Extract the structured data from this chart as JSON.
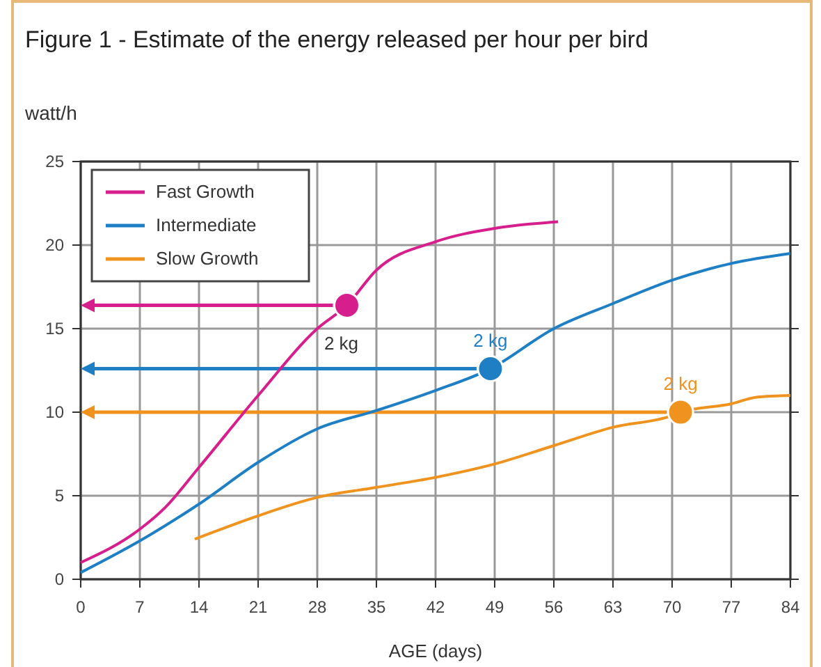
{
  "chart_data": {
    "type": "line",
    "title": "Figure 1 - Estimate of the energy released per hour per bird",
    "ylabel": "watt/h",
    "xlabel": "AGE (days)",
    "xlim": [
      0,
      84
    ],
    "xticks": [
      0,
      7,
      14,
      21,
      28,
      35,
      42,
      49,
      56,
      63,
      70,
      77,
      84
    ],
    "ylim": [
      0,
      25
    ],
    "yticks": [
      0,
      5,
      10,
      15,
      20,
      25
    ],
    "grid": true,
    "legend": "top left",
    "series": [
      {
        "name": "Fast Growth",
        "color": "#d61f8c",
        "x": [
          0,
          7,
          10,
          14,
          21,
          28,
          31.5,
          35,
          42,
          49,
          56.5
        ],
        "values": [
          1.0,
          3.0,
          4.3,
          6.7,
          11,
          15,
          16.4,
          18.5,
          20.2,
          21,
          21.4
        ]
      },
      {
        "name": "Intermediate",
        "color": "#1f7fc4",
        "x": [
          0,
          7,
          14,
          21,
          28,
          35,
          42,
          48.5,
          56,
          63,
          70,
          77,
          84
        ],
        "values": [
          0.4,
          2.3,
          4.5,
          7,
          9,
          10.1,
          11.3,
          12.6,
          15,
          16.5,
          17.9,
          18.9,
          19.5
        ]
      },
      {
        "name": "Slow Growth",
        "color": "#f0931e",
        "x": [
          13.5,
          21,
          28,
          35,
          42,
          49,
          56,
          63,
          70,
          71,
          77,
          80,
          84
        ],
        "values": [
          2.4,
          3.8,
          4.9,
          5.5,
          6.1,
          6.9,
          8.0,
          9.1,
          9.8,
          10,
          10.5,
          10.9,
          11
        ]
      },
      {
        "type": "scatter",
        "color": "#d61f8c",
        "x": [
          31.5
        ],
        "values": [
          16.4
        ]
      },
      {
        "type": "scatter",
        "color": "#1f7fc4",
        "x": [
          48.5
        ],
        "values": [
          12.6
        ]
      },
      {
        "type": "scatter",
        "color": "#f0931e",
        "x": [
          71
        ],
        "values": [
          10
        ]
      }
    ],
    "annotations": [
      {
        "text": "2 kg",
        "x": 31.5,
        "y": 16.4
      },
      {
        "text": "2 kg",
        "x": 48.5,
        "y": 12.6
      },
      {
        "text": "2 kg",
        "x": 71,
        "y": 10
      }
    ]
  }
}
